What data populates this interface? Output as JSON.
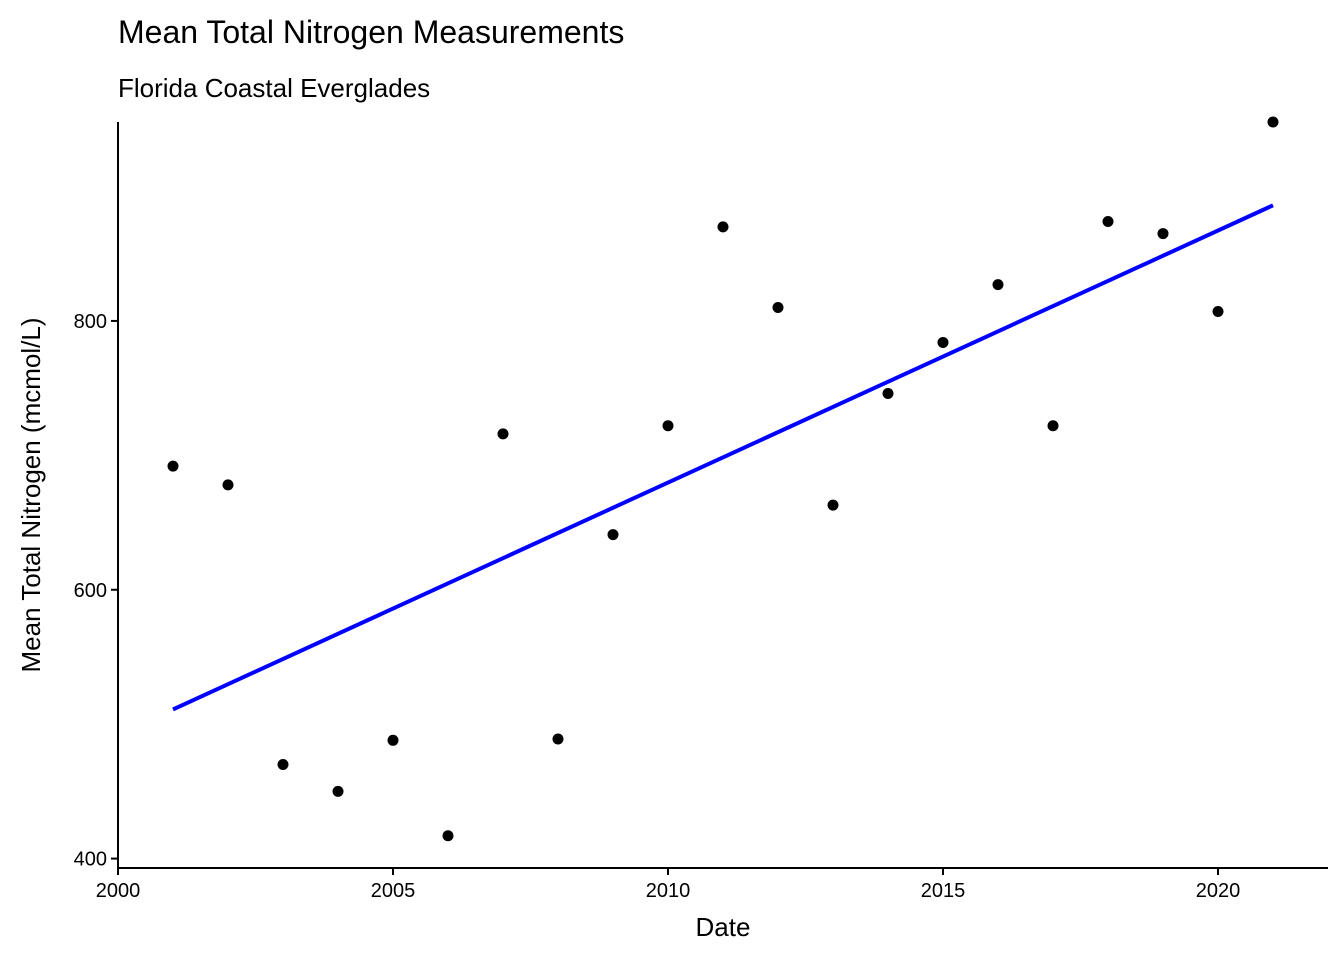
{
  "chart_data": {
    "type": "scatter",
    "title": "Mean Total Nitrogen Measurements",
    "subtitle": "Florida Coastal Everglades",
    "xlabel": "Date",
    "ylabel": "Mean Total Nitrogen (mcmol/L)",
    "xlim": [
      2000,
      2022
    ],
    "ylim": [
      393,
      948
    ],
    "x_ticks": [
      2000,
      2005,
      2010,
      2015,
      2020
    ],
    "y_ticks": [
      400,
      600,
      800
    ],
    "grid": false,
    "legend": "none",
    "series": [
      {
        "type": "scatter",
        "color": "#000000",
        "x": [
          2001,
          2002,
          2003,
          2004,
          2005,
          2006,
          2007,
          2008,
          2009,
          2010,
          2011,
          2012,
          2013,
          2014,
          2015,
          2016,
          2017,
          2018,
          2019,
          2020,
          2021
        ],
        "y": [
          692,
          678,
          470,
          450,
          488,
          417,
          716,
          489,
          641,
          722,
          870,
          810,
          663,
          746,
          784,
          827,
          722,
          874,
          865,
          807,
          948
        ]
      },
      {
        "type": "line",
        "color": "#0000ff",
        "x": [
          2001,
          2021
        ],
        "y": [
          511,
          886
        ]
      }
    ]
  }
}
